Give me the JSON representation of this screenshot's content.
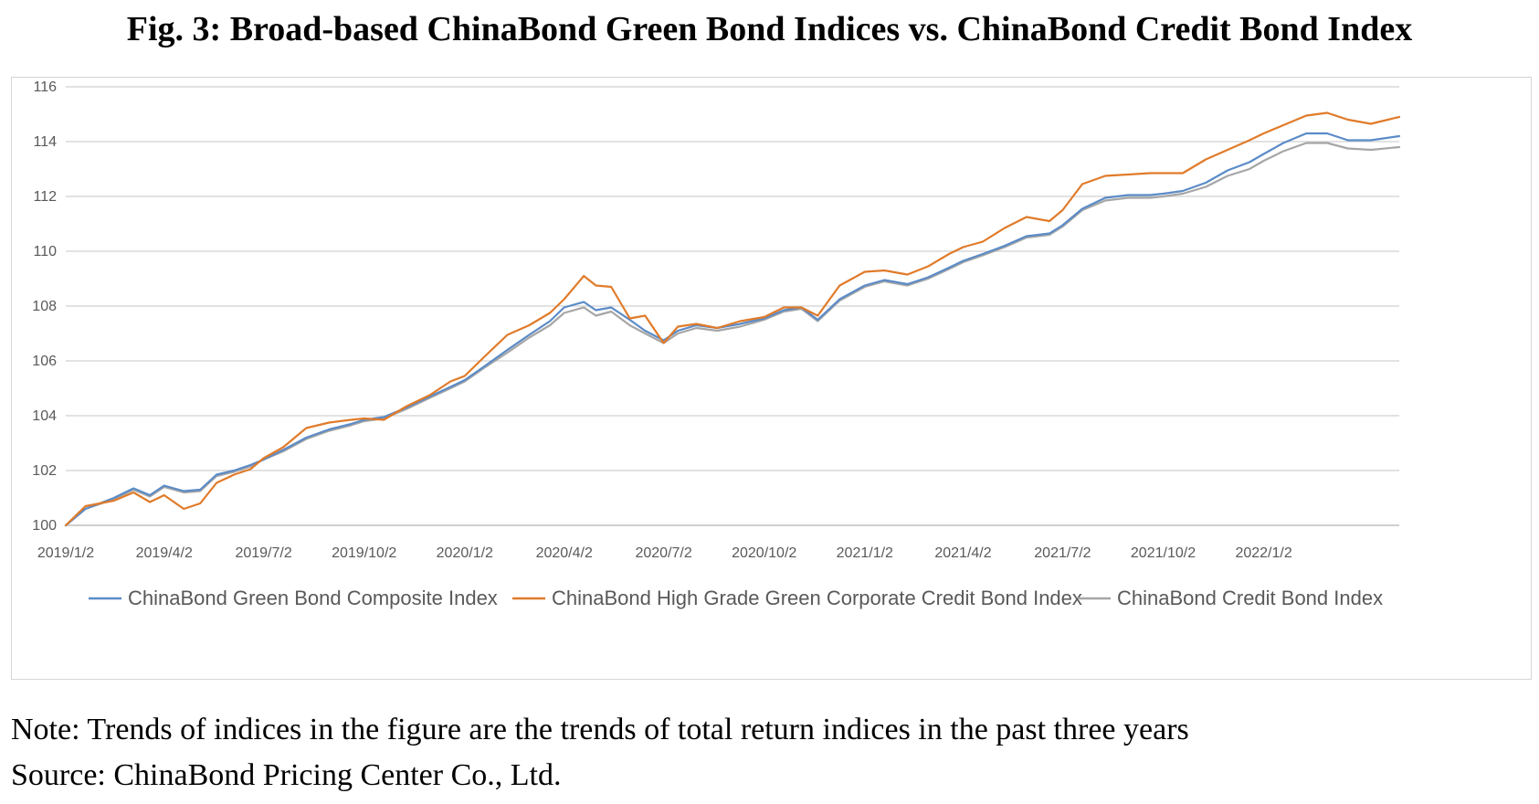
{
  "title": "Fig. 3: Broad-based ChinaBond Green Bond Indices vs. ChinaBond Credit Bond Index",
  "note": "Note: Trends of indices in the figure are the trends of total return indices in the past three years",
  "source": "Source: ChinaBond Pricing Center Co., Ltd.",
  "colors": {
    "grid": "#d9d9d9",
    "axis": "#bfbfbf"
  },
  "chart_data": {
    "type": "line",
    "title": "Fig. 3: Broad-based ChinaBond Green Bond Indices vs. ChinaBond Credit Bond Index",
    "xlabel": "",
    "ylabel": "",
    "xlim": [
      "2019/1/2",
      "2022/5/6"
    ],
    "ylim": [
      100,
      116
    ],
    "yticks": [
      100,
      102,
      104,
      106,
      108,
      110,
      112,
      114,
      116
    ],
    "xtick_labels": [
      "2019/1/2",
      "2019/4/2",
      "2019/7/2",
      "2019/10/2",
      "2020/1/2",
      "2020/4/2",
      "2020/7/2",
      "2020/10/2",
      "2021/1/2",
      "2021/4/2",
      "2021/7/2",
      "2021/10/2",
      "2022/1/2"
    ],
    "grid": "horizontal",
    "legend_position": "bottom",
    "x": [
      "2019/1/2",
      "2019/1/20",
      "2019/2/15",
      "2019/3/5",
      "2019/3/20",
      "2019/4/2",
      "2019/4/20",
      "2019/5/5",
      "2019/5/20",
      "2019/6/5",
      "2019/6/20",
      "2019/7/2",
      "2019/7/20",
      "2019/8/10",
      "2019/8/31",
      "2019/9/20",
      "2019/10/2",
      "2019/10/20",
      "2019/11/10",
      "2019/12/1",
      "2019/12/20",
      "2020/1/2",
      "2020/1/20",
      "2020/2/10",
      "2020/3/1",
      "2020/3/20",
      "2020/4/2",
      "2020/4/20",
      "2020/5/1",
      "2020/5/15",
      "2020/6/1",
      "2020/6/15",
      "2020/7/2",
      "2020/7/15",
      "2020/8/1",
      "2020/8/20",
      "2020/9/10",
      "2020/10/2",
      "2020/10/20",
      "2020/11/5",
      "2020/11/20",
      "2020/12/10",
      "2021/1/2",
      "2021/1/20",
      "2021/2/10",
      "2021/3/1",
      "2021/3/20",
      "2021/4/2",
      "2021/4/20",
      "2021/5/10",
      "2021/5/30",
      "2021/6/20",
      "2021/7/2",
      "2021/7/20",
      "2021/8/10",
      "2021/8/31",
      "2021/9/20",
      "2021/10/2",
      "2021/10/20",
      "2021/11/10",
      "2021/11/30",
      "2021/12/20",
      "2022/1/2",
      "2022/1/20",
      "2022/2/10",
      "2022/3/1",
      "2022/3/20",
      "2022/4/10",
      "2022/5/6"
    ],
    "series": [
      {
        "name": "ChinaBond Green Bond Composite Index",
        "color": "#5b8bc7",
        "values": [
          100.0,
          100.6,
          101.0,
          101.35,
          101.1,
          101.45,
          101.25,
          101.3,
          101.85,
          102.0,
          102.2,
          102.4,
          102.75,
          103.2,
          103.5,
          103.7,
          103.85,
          103.95,
          104.3,
          104.7,
          105.05,
          105.3,
          105.8,
          106.4,
          106.95,
          107.45,
          107.95,
          108.15,
          107.85,
          107.95,
          107.5,
          107.1,
          106.75,
          107.1,
          107.3,
          107.2,
          107.35,
          107.55,
          107.85,
          107.95,
          107.5,
          108.25,
          108.75,
          108.95,
          108.8,
          109.05,
          109.4,
          109.65,
          109.9,
          110.2,
          110.55,
          110.65,
          110.95,
          111.55,
          111.95,
          112.05,
          112.05,
          112.1,
          112.2,
          112.5,
          112.95,
          113.25,
          113.55,
          113.95,
          114.3,
          114.3,
          114.05,
          114.05,
          114.2
        ]
      },
      {
        "name": "ChinaBond High Grade Green Corporate Credit Bond Index",
        "color": "#e07b2a",
        "values": [
          100.0,
          100.7,
          100.9,
          101.2,
          100.85,
          101.1,
          100.6,
          100.8,
          101.55,
          101.85,
          102.05,
          102.45,
          102.85,
          103.55,
          103.75,
          103.85,
          103.9,
          103.85,
          104.35,
          104.75,
          105.25,
          105.45,
          106.15,
          106.95,
          107.3,
          107.75,
          108.25,
          109.1,
          108.75,
          108.7,
          107.55,
          107.65,
          106.65,
          107.25,
          107.35,
          107.2,
          107.45,
          107.6,
          107.95,
          107.95,
          107.65,
          108.75,
          109.25,
          109.3,
          109.15,
          109.45,
          109.9,
          110.15,
          110.35,
          110.85,
          111.25,
          111.1,
          111.5,
          112.45,
          112.75,
          112.8,
          112.85,
          112.85,
          112.85,
          113.35,
          113.7,
          114.05,
          114.3,
          114.6,
          114.95,
          115.05,
          114.8,
          114.65,
          114.9
        ]
      },
      {
        "name": "ChinaBond Credit Bond Index",
        "color": "#a6a6a6",
        "values": [
          100.0,
          100.6,
          100.95,
          101.3,
          101.05,
          101.4,
          101.2,
          101.25,
          101.8,
          101.95,
          102.15,
          102.4,
          102.7,
          103.15,
          103.45,
          103.65,
          103.8,
          103.9,
          104.25,
          104.65,
          105.0,
          105.25,
          105.75,
          106.3,
          106.85,
          107.3,
          107.75,
          107.95,
          107.65,
          107.8,
          107.3,
          107.0,
          106.65,
          107.0,
          107.2,
          107.1,
          107.25,
          107.5,
          107.8,
          107.9,
          107.45,
          108.2,
          108.7,
          108.9,
          108.75,
          109.0,
          109.35,
          109.6,
          109.85,
          110.15,
          110.5,
          110.6,
          110.9,
          111.5,
          111.85,
          111.95,
          111.95,
          112.0,
          112.1,
          112.35,
          112.75,
          113.0,
          113.3,
          113.65,
          113.95,
          113.95,
          113.75,
          113.7,
          113.8
        ]
      }
    ]
  }
}
